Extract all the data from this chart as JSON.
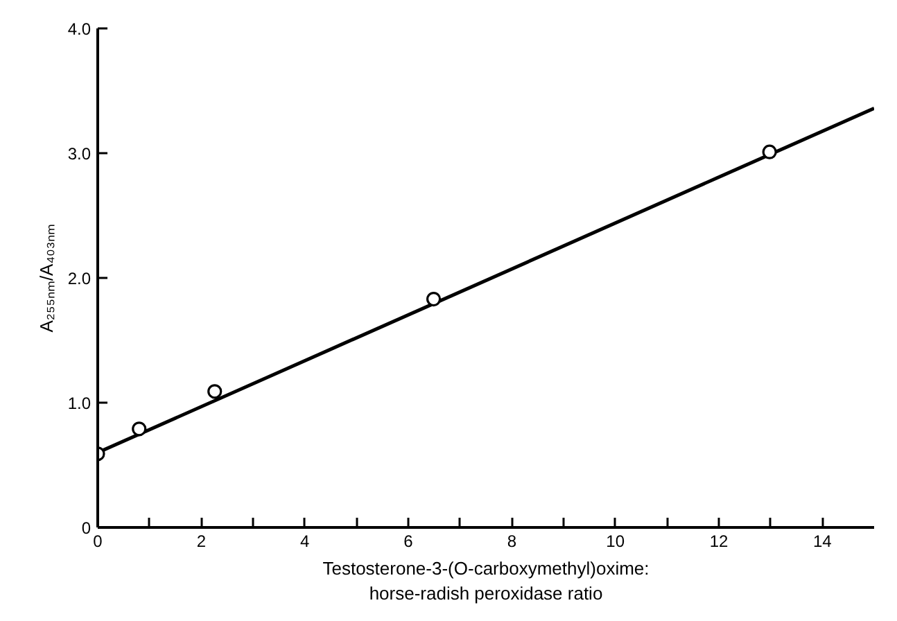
{
  "chart_data": {
    "type": "scatter",
    "xlabel": "Testosterone-3-(O-carboxymethyl)oxime:\nhorse-radish peroxidase ratio",
    "ylabel": "A₂₅₅ₙₘ/A₄₀₃ₙₘ",
    "x": [
      0,
      0.8,
      2.26,
      6.49,
      12.98
    ],
    "series": [
      {
        "color": "#000000",
        "marker": "circle",
        "values": [
          0.59,
          0.79,
          1.09,
          1.83,
          3.01
        ]
      },
      {
        "type": "line",
        "color": "#000000",
        "x": [
          0,
          15
        ],
        "values": [
          0.6,
          3.36
        ],
        "line_style": "solid",
        "marker": "none"
      }
    ],
    "xlim": [
      0,
      15
    ],
    "ylim": [
      0,
      4
    ],
    "xticks": [
      0,
      {
        "value": 1,
        "label": null
      },
      2,
      {
        "value": 3,
        "label": null
      },
      4,
      {
        "value": 5,
        "label": null
      },
      6,
      {
        "value": 7,
        "label": null
      },
      8,
      {
        "value": 9,
        "label": null
      },
      10,
      {
        "value": 11,
        "label": null
      },
      12,
      {
        "value": 13,
        "label": null
      },
      14
    ],
    "yticks": [
      0,
      {
        "value": 1,
        "label": "1.0"
      },
      {
        "value": 2,
        "label": "2.0"
      },
      {
        "value": 3,
        "label": "3.0"
      },
      {
        "value": 4,
        "label": "4.0"
      }
    ],
    "grid": false
  }
}
